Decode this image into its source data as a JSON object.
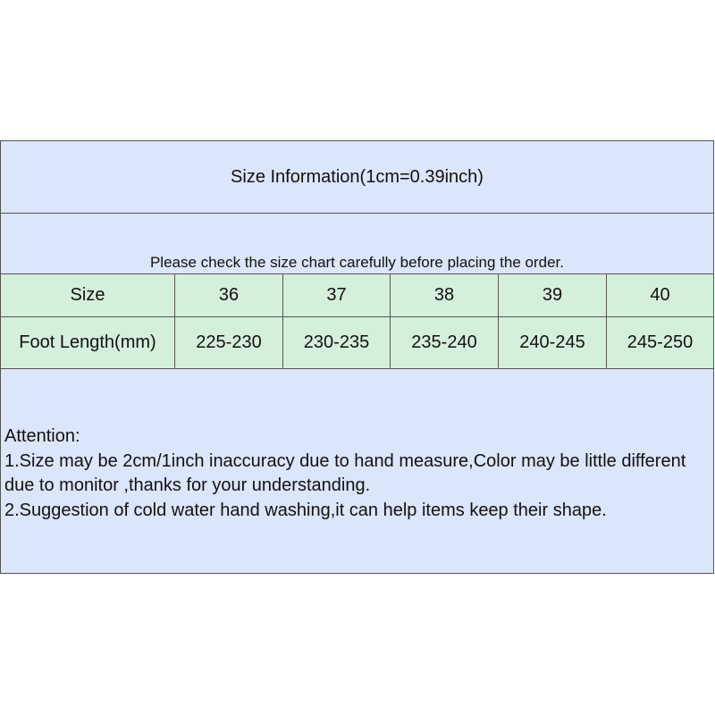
{
  "title": "Size Information(1cm=0.39inch)",
  "note": "Please check the size chart carefully before placing the order.",
  "table": {
    "header": {
      "label": "Size",
      "values": [
        "36",
        "37",
        "38",
        "39",
        "40"
      ]
    },
    "row": {
      "label": "Foot Length(mm)",
      "values": [
        "225-230",
        "230-235",
        "235-240",
        "240-245",
        "245-250"
      ]
    }
  },
  "attention": {
    "heading": "Attention:",
    "line1": "1.Size may be 2cm/1inch inaccuracy due to hand measure,Color may be little different due to monitor ,thanks for your understanding.",
    "line2": "2.Suggestion of cold water hand washing,it can help items keep their shape."
  },
  "colors": {
    "blue": "#dae6fa",
    "green": "#d5f0da"
  }
}
